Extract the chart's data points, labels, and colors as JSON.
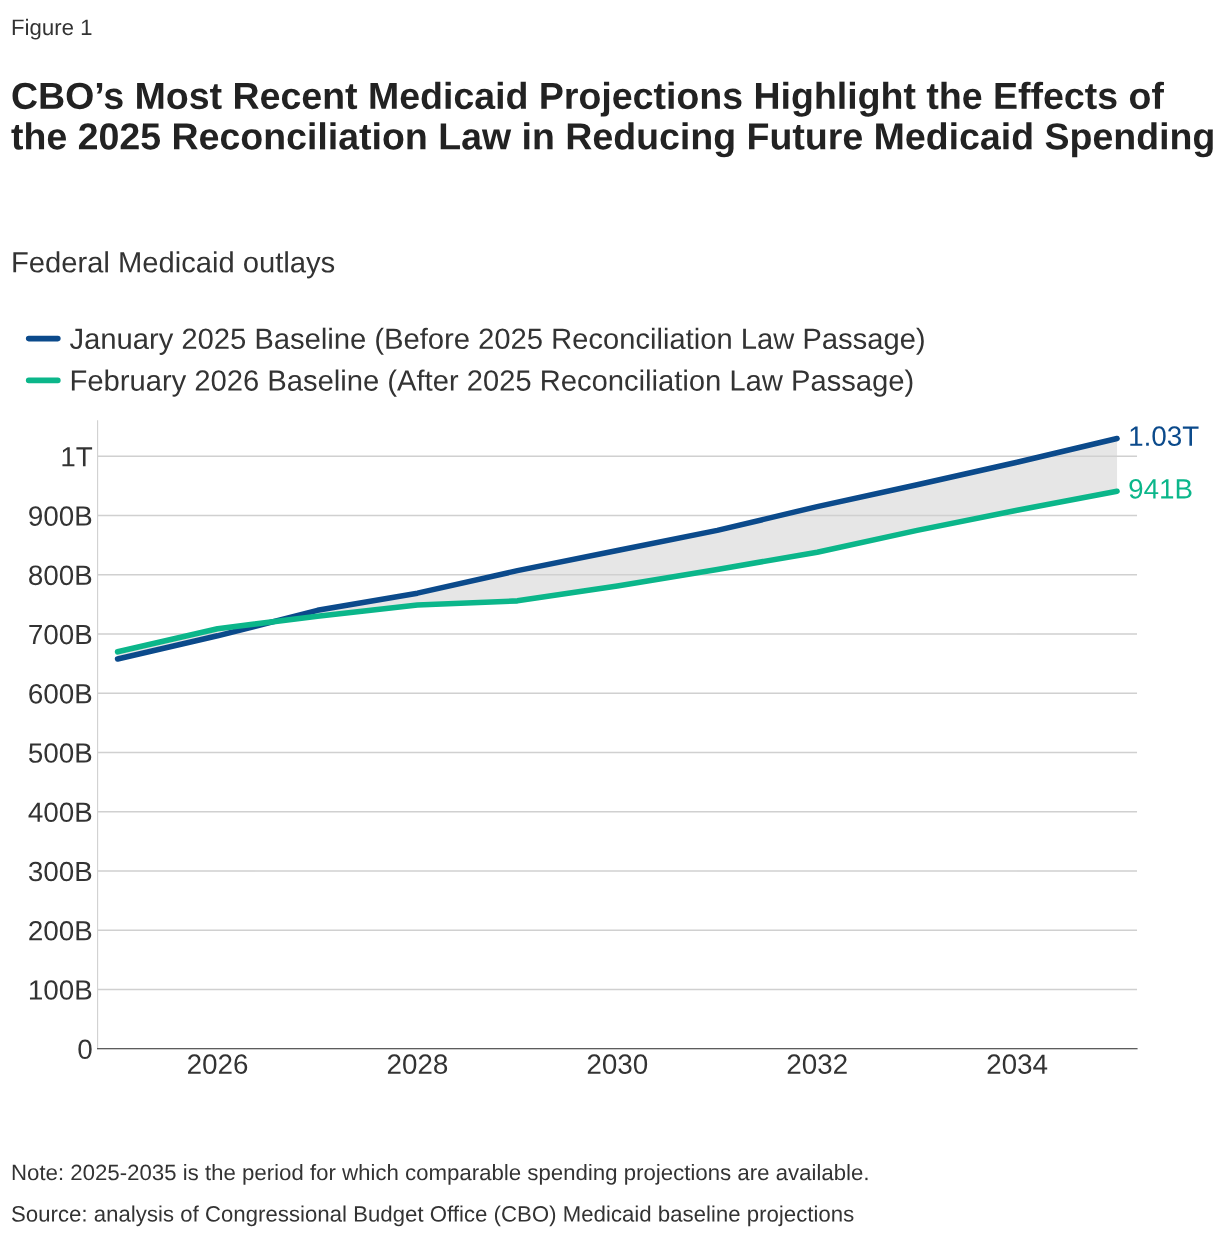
{
  "chart_data": {
    "type": "line",
    "title": "CBO’s Most Recent Medicaid Projections Highlight the Effects of the 2025 Reconciliation Law in Reducing Future Medicaid Spending",
    "subtitle": "Federal Medicaid outlays",
    "annotations": [
      "Figure 1",
      "Note: 2025-2035 is the period for which comparable spending projections are available.",
      "Source: analysis of Congressional Budget Office (CBO) Medicaid baseline projections"
    ],
    "x": [
      2025,
      2026,
      2027,
      2028,
      2029,
      2030,
      2031,
      2032,
      2033,
      2034,
      2035
    ],
    "series": [
      {
        "name": "January 2025 Baseline (Before 2025 Reconciliation Law Passage)",
        "color": "#0b4a8b",
        "values": [
          658000000000,
          697000000000,
          740000000000,
          769000000000,
          807000000000,
          841000000000,
          875000000000,
          915000000000,
          952000000000,
          990000000000,
          1030000000000
        ],
        "lower": [
          670000000000,
          709000000000,
          730000000000,
          749000000000,
          756000000000,
          781000000000,
          809000000000,
          838000000000,
          875000000000,
          909000000000,
          941000000000
        ],
        "upper": [
          658000000000,
          697000000000,
          740000000000,
          769000000000,
          807000000000,
          841000000000,
          875000000000,
          915000000000,
          952000000000,
          990000000000,
          1030000000000
        ],
        "value_labels": [
          null,
          null,
          null,
          null,
          null,
          null,
          null,
          null,
          null,
          null,
          "1.03T"
        ]
      },
      {
        "name": "February 2026 Baseline (After 2025 Reconciliation Law Passage)",
        "color": "#0bb68a",
        "values": [
          670000000000,
          709000000000,
          730000000000,
          749000000000,
          756000000000,
          781000000000,
          809000000000,
          838000000000,
          875000000000,
          909000000000,
          941000000000
        ],
        "value_labels": [
          null,
          null,
          null,
          null,
          null,
          null,
          null,
          null,
          null,
          null,
          "941B"
        ]
      }
    ],
    "xlim": [
      2024.8,
      2035.2
    ],
    "xticks": [
      2026,
      2028,
      2030,
      2032,
      2034
    ],
    "ylim": [
      0,
      1060000000000
    ],
    "yticks": [
      {
        "value": 0,
        "label": "0"
      },
      {
        "value": 100000000000,
        "label": "100B"
      },
      {
        "value": 200000000000,
        "label": "200B"
      },
      {
        "value": 300000000000,
        "label": "300B"
      },
      {
        "value": 400000000000,
        "label": "400B"
      },
      {
        "value": 500000000000,
        "label": "500B"
      },
      {
        "value": 600000000000,
        "label": "600B"
      },
      {
        "value": 700000000000,
        "label": "700B"
      },
      {
        "value": 800000000000,
        "label": "800B"
      },
      {
        "value": 900000000000,
        "label": "900B"
      },
      {
        "value": 1000000000000,
        "label": "1T"
      }
    ],
    "grid": "y",
    "legend": "top left",
    "marker": "none",
    "line_style": "solid"
  }
}
